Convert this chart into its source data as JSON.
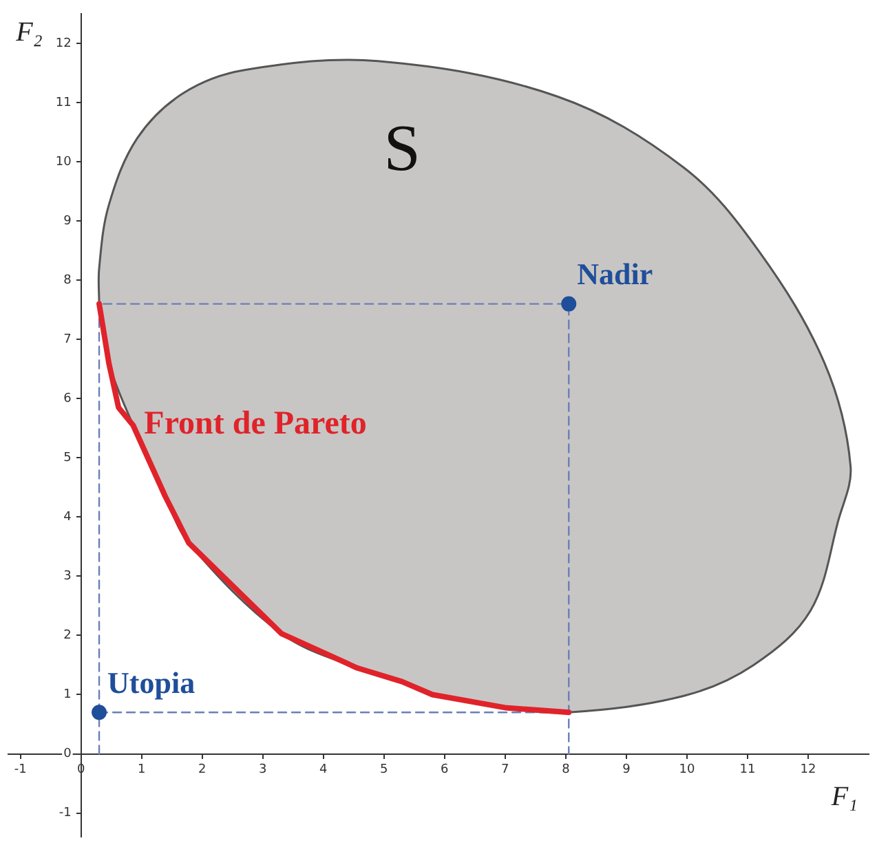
{
  "chart_data": {
    "type": "line",
    "xlabel": "F₁",
    "ylabel": "F₂",
    "xlim": [
      -1.2,
      13
    ],
    "ylim": [
      -1.4,
      12.5
    ],
    "xticks": [
      -1,
      0,
      1,
      2,
      3,
      4,
      5,
      6,
      7,
      8,
      9,
      10,
      11,
      12
    ],
    "yticks": [
      -1,
      0,
      1,
      2,
      3,
      4,
      5,
      6,
      7,
      8,
      9,
      10,
      11,
      12
    ],
    "grid": false,
    "legend": false,
    "series": [
      {
        "type": "area",
        "name": "S",
        "color": "#c8c6c4",
        "x": [
          0.3,
          0.3,
          0.46,
          0.93,
          1.69,
          2.7,
          4.9,
          7.87,
          9.95,
          11.18,
          12.27,
          12.7,
          12.5,
          12.04,
          11.1,
          9.95,
          8.05,
          7.0,
          5.8,
          5.3,
          4.56,
          3.31,
          1.78,
          1.39,
          0.86,
          0.46,
          0.3
        ],
        "values": [
          7.6,
          8.2,
          9.27,
          10.4,
          11.16,
          11.55,
          11.7,
          11.1,
          9.9,
          8.5,
          6.6,
          4.86,
          3.95,
          2.42,
          1.5,
          0.98,
          0.7,
          0.78,
          1.0,
          1.22,
          1.45,
          2.03,
          3.56,
          4.35,
          5.55,
          6.6,
          7.6
        ]
      },
      {
        "name": "Front de Pareto",
        "color": "#e0232a",
        "x": [
          0.3,
          0.46,
          0.62,
          0.86,
          1.39,
          1.78,
          3.31,
          4.56,
          5.3,
          5.8,
          7.0,
          8.05
        ],
        "values": [
          7.6,
          6.6,
          5.85,
          5.55,
          4.35,
          3.56,
          2.03,
          1.45,
          1.22,
          1.0,
          0.78,
          0.7
        ]
      },
      {
        "color": "#6a7fb8",
        "line_style": "dashed",
        "x": [
          0.3,
          0.3,
          8.05,
          8.05
        ],
        "values": [
          0,
          7.6,
          7.6,
          0
        ]
      },
      {
        "color": "#6a7fb8",
        "line_style": "dashed",
        "x": [
          0.3,
          8.05
        ],
        "values": [
          0.7,
          0.7
        ]
      },
      {
        "type": "scatter",
        "name": "Utopia",
        "color": "#1f4e9a",
        "marker": "circle",
        "x": [
          0.3
        ],
        "values": [
          0.7
        ]
      },
      {
        "type": "scatter",
        "name": "Nadir",
        "color": "#1f4e9a",
        "marker": "circle",
        "x": [
          8.05
        ],
        "values": [
          7.6
        ]
      }
    ]
  }
}
